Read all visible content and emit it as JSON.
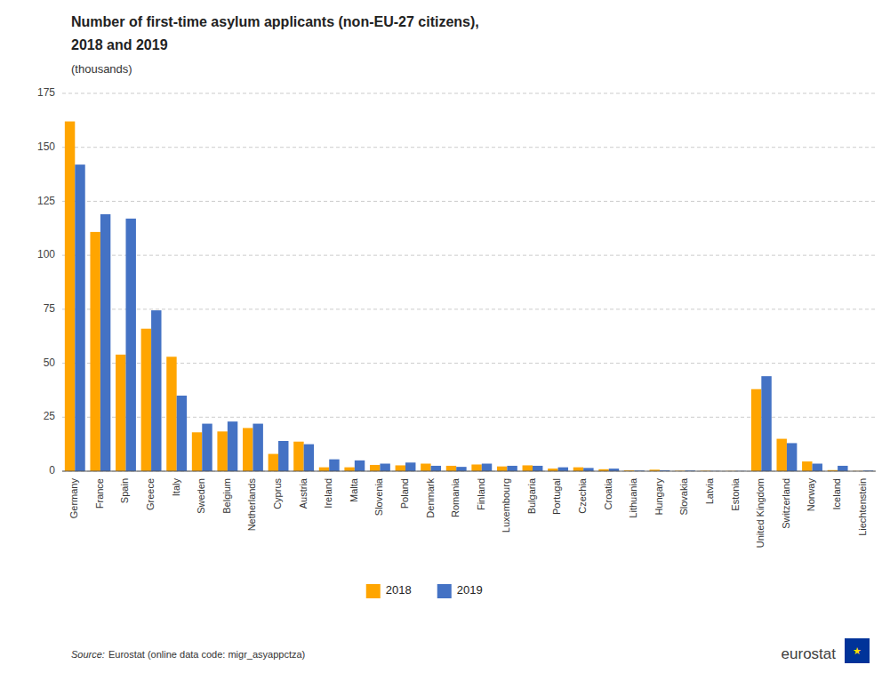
{
  "chart_data": {
    "type": "bar",
    "title": [
      "Number of first-time asylum applicants (non-EU-27 citizens),",
      "2018 and 2019"
    ],
    "subtitle": "(thousands)",
    "annotations": [
      "Source:",
      "Eurostat (online data code: migr_asyappctza)",
      "eurostat",
      "★"
    ],
    "categories": [
      "Germany",
      "France",
      "Spain",
      "Greece",
      "Italy",
      "Sweden",
      "Belgium",
      "Netherlands",
      "Cyprus",
      "Austria",
      "Ireland",
      "Malta",
      "Slovenia",
      "Poland",
      "Denmark",
      "Romania",
      "Finland",
      "Luxembourg",
      "Bulgaria",
      "Portugal",
      "Czechia",
      "Croatia",
      "Lithuania",
      "Hungary",
      "Slovakia",
      "Latvia",
      "Estonia",
      "United Kingdom",
      "Switzerland",
      "Norway",
      "Iceland",
      "Liechtenstein"
    ],
    "series": [
      {
        "name": "2018",
        "color": "#FFA500",
        "values": [
          162.0,
          110.8,
          54.0,
          66.0,
          53.0,
          18.0,
          18.4,
          20.0,
          8.0,
          13.7,
          1.8,
          1.8,
          2.9,
          2.7,
          3.5,
          2.5,
          3.1,
          2.2,
          2.7,
          1.2,
          1.8,
          0.9,
          0.4,
          0.7,
          0.2,
          0.2,
          0.1,
          38.0,
          15.0,
          4.5,
          0.5,
          0.1
        ]
      },
      {
        "name": "2019",
        "color": "#4472C4",
        "values": [
          142.0,
          119.0,
          117.0,
          74.5,
          35.0,
          22.0,
          23.0,
          22.0,
          14.0,
          12.5,
          5.5,
          5.0,
          3.5,
          4.0,
          2.5,
          2.0,
          3.5,
          2.5,
          2.5,
          1.8,
          1.5,
          1.2,
          0.3,
          0.4,
          0.3,
          0.1,
          0.1,
          44.0,
          13.0,
          3.5,
          2.5,
          0.3
        ]
      }
    ],
    "ylim": [
      0,
      175
    ],
    "yticks": [
      0,
      25,
      50,
      75,
      100,
      125,
      150,
      175
    ],
    "grid": true,
    "legend": "bottom"
  }
}
